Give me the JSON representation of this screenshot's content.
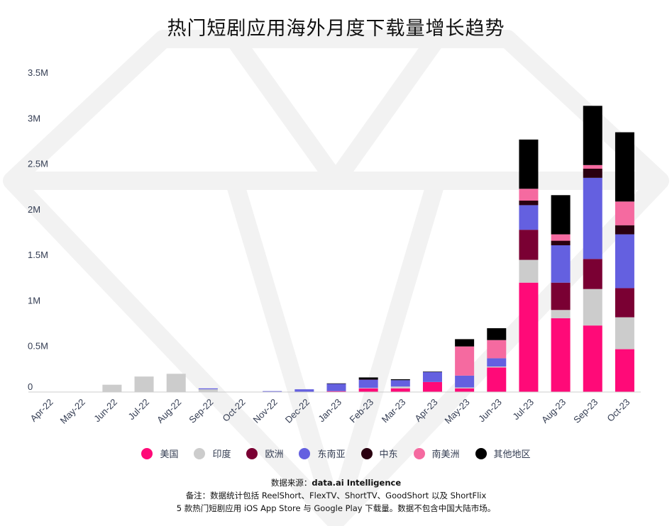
{
  "title": "热门短剧应用海外月度下载量增长趋势",
  "source": {
    "label": "数据来源：",
    "name": "data.ai Intelligence",
    "note_line1": "备注：数据统计包括 ReelShort、FlexTV、ShortTV、GoodShort 以及 ShortFlix",
    "note_line2": "5 款热门短剧应用 iOS App Store 与 Google Play 下载量。数据不包含中国大陆市场。"
  },
  "colors": {
    "美国": "#ff0a78",
    "印度": "#cccccc",
    "欧洲": "#7a0033",
    "东南亚": "#6460e0",
    "中东": "#2a0010",
    "南美洲": "#f56aa0",
    "其他地区": "#000000"
  },
  "chart_data": {
    "type": "bar",
    "stacked": true,
    "title": "热门短剧应用海外月度下载量增长趋势",
    "xlabel": "",
    "ylabel": "",
    "ylim": [
      0,
      3500000
    ],
    "yticks": [
      0,
      500000,
      1000000,
      1500000,
      2000000,
      2500000,
      3000000,
      3500000
    ],
    "ytick_labels": [
      "0",
      "0.5M",
      "1M",
      "1.5M",
      "2M",
      "2.5M",
      "3M",
      "3.5M"
    ],
    "grid": false,
    "legend_position": "bottom",
    "categories": [
      "Apr-22",
      "May-22",
      "Jun-22",
      "Jul-22",
      "Aug-22",
      "Sep-22",
      "Oct-22",
      "Nov-22",
      "Dec-22",
      "Jan-23",
      "Feb-23",
      "Mar-23",
      "Apr-23",
      "May-23",
      "Jun-23",
      "Jul-23",
      "Aug-23",
      "Sep-23",
      "Oct-23"
    ],
    "series": [
      {
        "name": "美国",
        "values": [
          0,
          0,
          0,
          0,
          0,
          0,
          0,
          0,
          0,
          10000,
          40000,
          40000,
          110000,
          40000,
          270000,
          1200000,
          810000,
          730000,
          470000
        ]
      },
      {
        "name": "印度",
        "values": [
          0,
          0,
          80000,
          170000,
          200000,
          30000,
          0,
          0,
          0,
          0,
          5000,
          20000,
          0,
          10000,
          10000,
          250000,
          90000,
          400000,
          350000
        ]
      },
      {
        "name": "欧洲",
        "values": [
          0,
          0,
          0,
          0,
          0,
          0,
          0,
          0,
          0,
          0,
          0,
          0,
          0,
          0,
          0,
          330000,
          300000,
          330000,
          320000
        ]
      },
      {
        "name": "东南亚",
        "values": [
          0,
          0,
          0,
          0,
          0,
          10000,
          0,
          10000,
          30000,
          80000,
          90000,
          70000,
          110000,
          130000,
          90000,
          270000,
          410000,
          890000,
          590000
        ]
      },
      {
        "name": "中东",
        "values": [
          0,
          0,
          0,
          0,
          0,
          0,
          0,
          0,
          0,
          0,
          5000,
          0,
          0,
          0,
          0,
          50000,
          50000,
          100000,
          100000
        ]
      },
      {
        "name": "南美洲",
        "values": [
          0,
          0,
          0,
          0,
          0,
          0,
          0,
          0,
          0,
          0,
          0,
          0,
          0,
          320000,
          200000,
          130000,
          70000,
          40000,
          260000
        ]
      },
      {
        "name": "其他地区",
        "values": [
          0,
          0,
          0,
          0,
          0,
          0,
          0,
          0,
          0,
          5000,
          20000,
          10000,
          5000,
          80000,
          130000,
          540000,
          430000,
          650000,
          760000
        ]
      }
    ]
  }
}
